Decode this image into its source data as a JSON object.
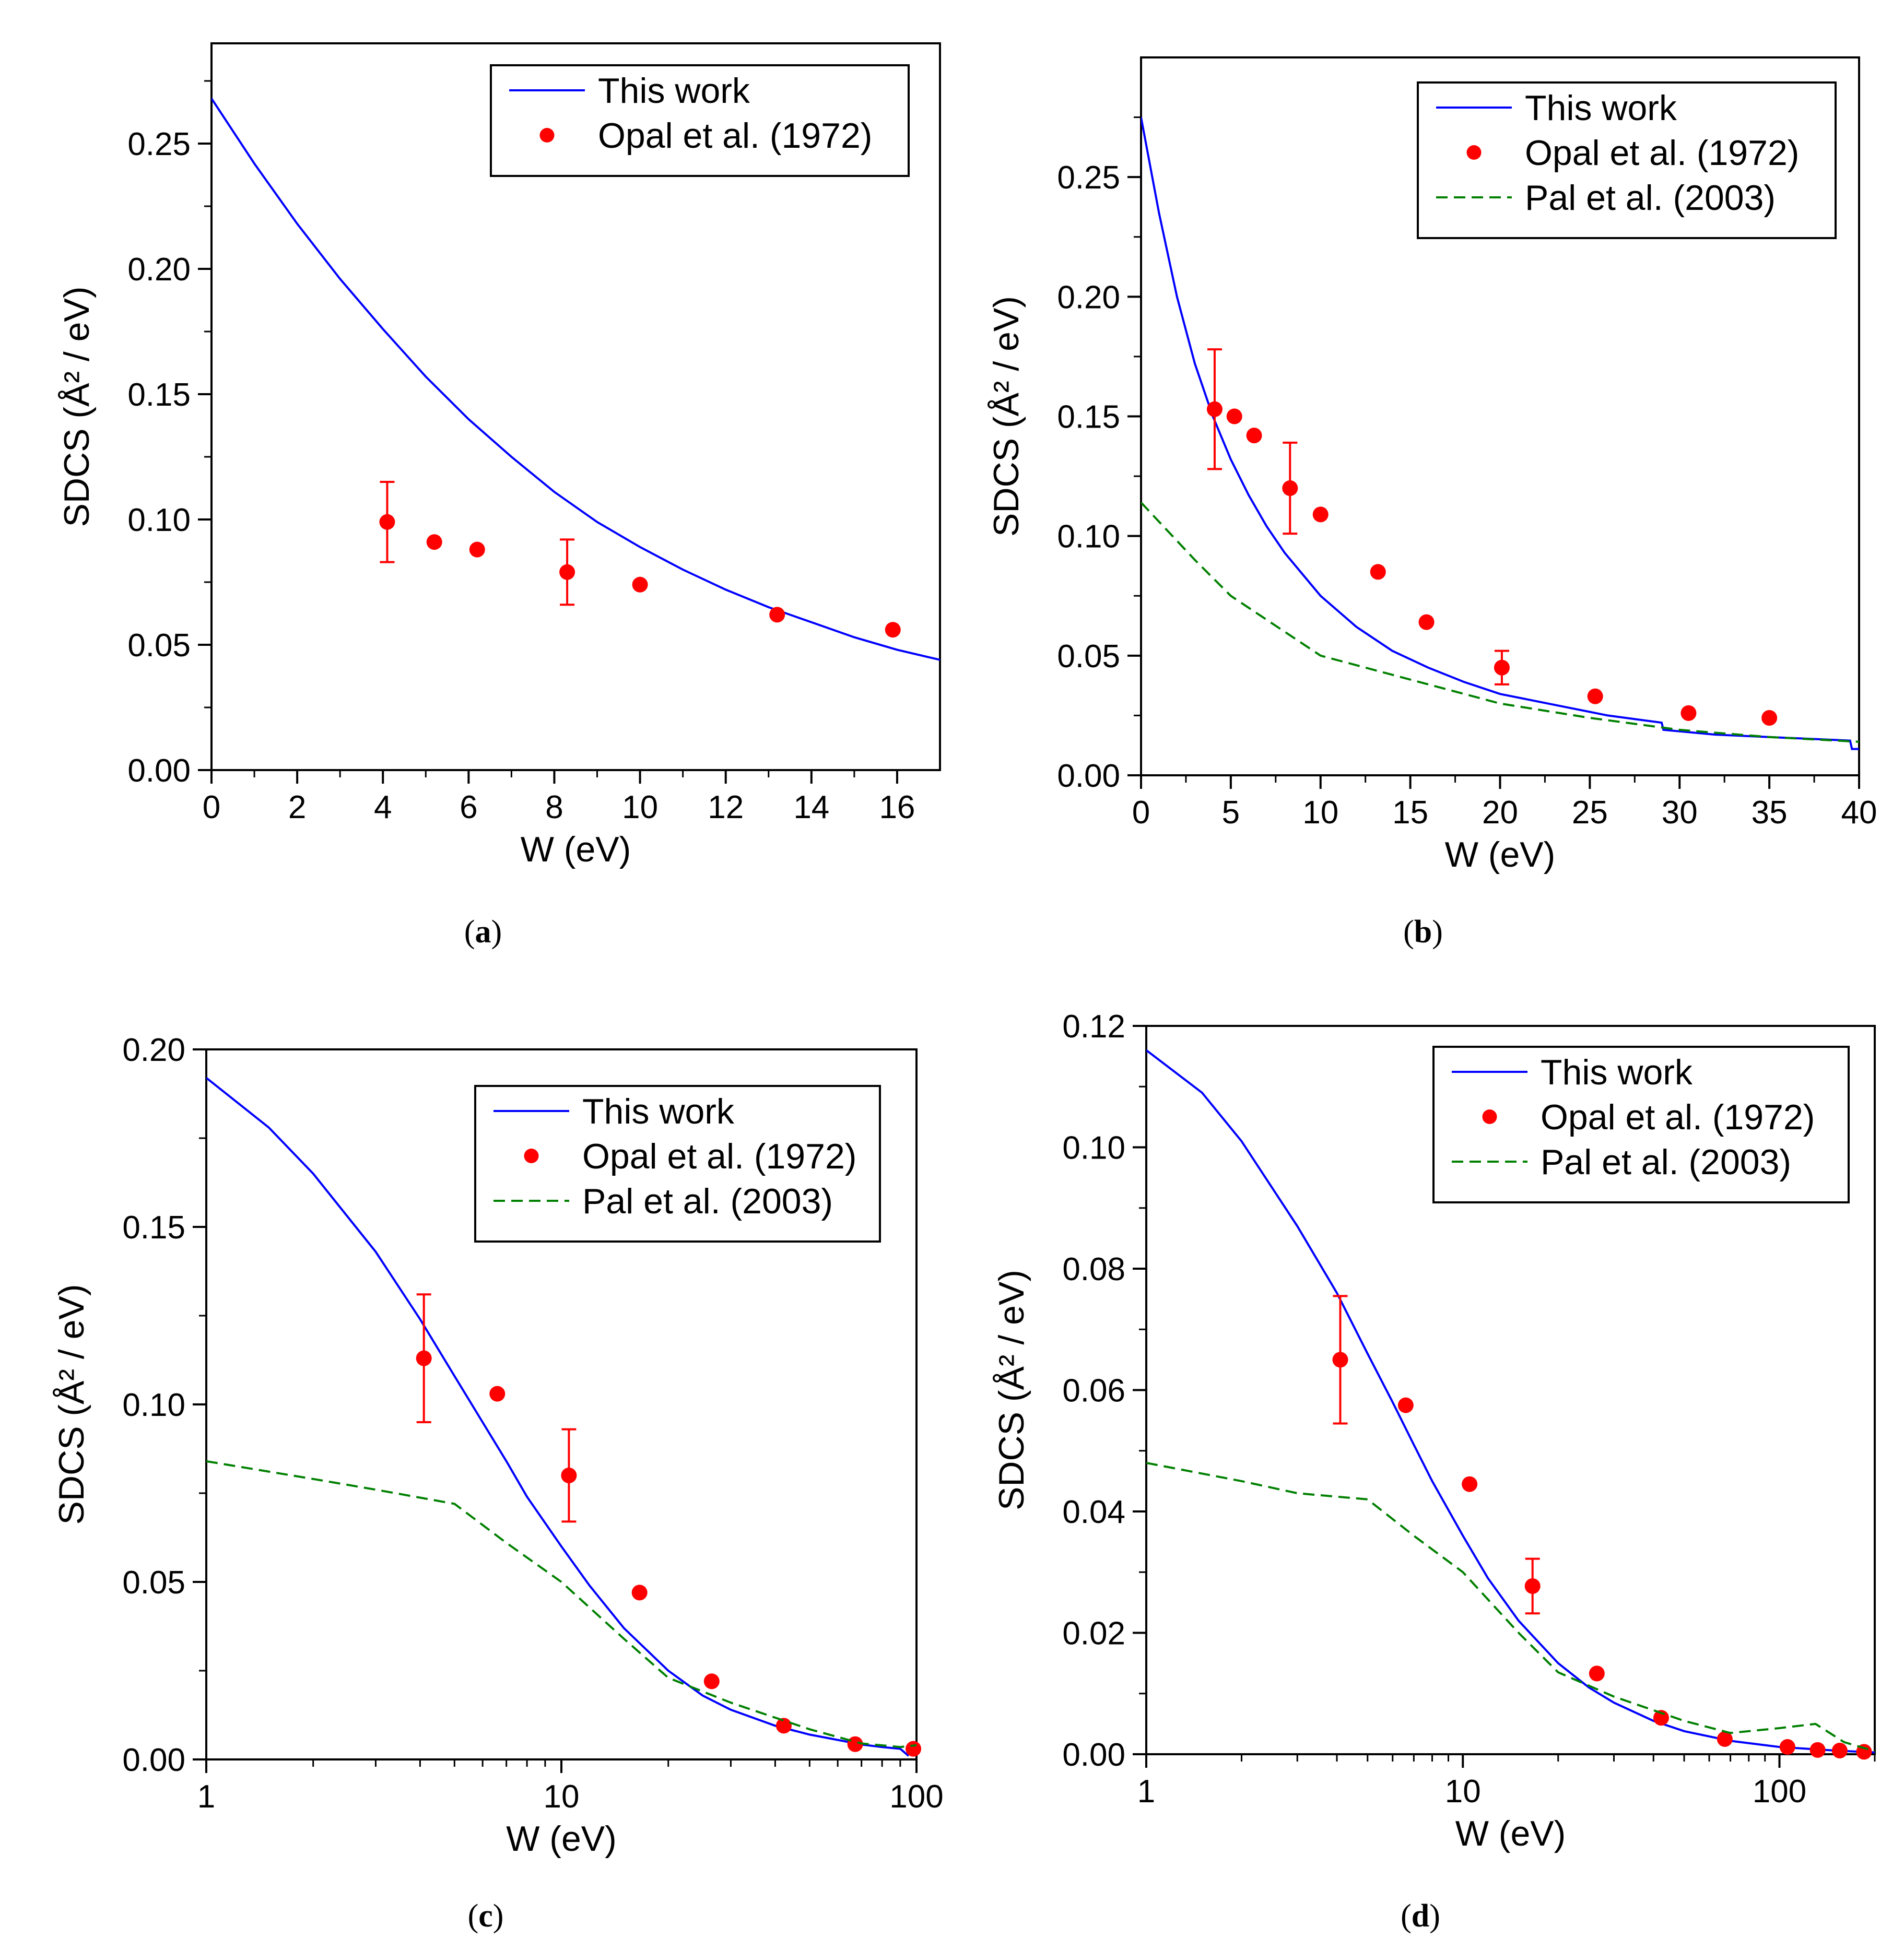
{
  "chart_data": [
    {
      "type": "line",
      "panel": "a",
      "xscale": "linear",
      "xlim": [
        0,
        17
      ],
      "ylim": [
        0,
        0.29
      ],
      "xticks": [
        0,
        2,
        4,
        6,
        8,
        10,
        12,
        14,
        16
      ],
      "xtick_labels": [
        "0",
        "2",
        "4",
        "6",
        "8",
        "10",
        "12",
        "14",
        "16"
      ],
      "yticks": [
        0,
        0.05,
        0.1,
        0.15,
        0.2,
        0.25
      ],
      "ytick_labels": [
        "0.00",
        "0.05",
        "0.10",
        "0.15",
        "0.20",
        "0.25"
      ],
      "xlabel": "W (eV)",
      "ylabel": "SDCS (Å² / eV)",
      "legend_position": "top-right",
      "series": [
        {
          "name": "This work",
          "style": "solid",
          "color": "#0000ff",
          "x": [
            0,
            1,
            2,
            3,
            4,
            5,
            6,
            7,
            8,
            9,
            10,
            11,
            12,
            13,
            14,
            15,
            16,
            17
          ],
          "y": [
            0.268,
            0.242,
            0.218,
            0.196,
            0.176,
            0.157,
            0.14,
            0.125,
            0.111,
            0.099,
            0.089,
            0.08,
            0.072,
            0.065,
            0.059,
            0.053,
            0.048,
            0.044
          ]
        },
        {
          "name": "Opal et al. (1972)",
          "style": "points",
          "color": "#ff0000",
          "x": [
            4.1,
            5.2,
            6.2,
            8.3,
            10.0,
            13.2,
            15.9
          ],
          "y": [
            0.099,
            0.091,
            0.088,
            0.079,
            0.074,
            0.062,
            0.056
          ],
          "err": [
            0.016,
            0,
            0,
            0.013,
            0,
            0,
            0
          ]
        }
      ]
    },
    {
      "type": "line",
      "panel": "b",
      "xscale": "linear",
      "xlim": [
        0,
        40
      ],
      "ylim": [
        0,
        0.3
      ],
      "xticks": [
        0,
        5,
        10,
        15,
        20,
        25,
        30,
        35,
        40
      ],
      "xtick_labels": [
        "0",
        "5",
        "10",
        "15",
        "20",
        "25",
        "30",
        "35",
        "40"
      ],
      "yticks": [
        0,
        0.05,
        0.1,
        0.15,
        0.2,
        0.25
      ],
      "ytick_labels": [
        "0.00",
        "0.05",
        "0.10",
        "0.15",
        "0.20",
        "0.25"
      ],
      "xlabel": "W (eV)",
      "ylabel": "SDCS (Å² / eV)",
      "legend_position": "top-right",
      "series": [
        {
          "name": "This work",
          "style": "solid",
          "color": "#0000ff",
          "x": [
            0,
            1,
            2,
            3,
            4,
            5,
            6,
            7,
            8,
            10,
            12,
            14,
            16,
            18,
            20,
            22,
            24,
            26,
            28,
            29,
            29.1,
            32,
            35,
            38,
            39.5,
            39.6,
            40
          ],
          "y": [
            0.275,
            0.235,
            0.2,
            0.172,
            0.15,
            0.132,
            0.117,
            0.104,
            0.093,
            0.075,
            0.062,
            0.052,
            0.045,
            0.039,
            0.034,
            0.031,
            0.028,
            0.025,
            0.023,
            0.022,
            0.019,
            0.017,
            0.016,
            0.015,
            0.0145,
            0.011,
            0.011
          ]
        },
        {
          "name": "Opal et al. (1972)",
          "style": "points",
          "color": "#ff0000",
          "x": [
            4.1,
            5.2,
            6.3,
            8.3,
            10.0,
            13.2,
            15.9,
            20.1,
            25.3,
            30.5,
            35.0
          ],
          "y": [
            0.153,
            0.15,
            0.142,
            0.12,
            0.109,
            0.085,
            0.064,
            0.045,
            0.033,
            0.026,
            0.024
          ],
          "err": [
            0.025,
            0,
            0,
            0.019,
            0,
            0,
            0,
            0.007,
            0,
            0,
            0
          ]
        },
        {
          "name": "Pal et al. (2003)",
          "style": "dashed",
          "color": "#008000",
          "x": [
            0,
            3,
            5,
            8,
            10,
            15,
            20,
            25,
            30,
            35,
            40
          ],
          "y": [
            0.114,
            0.09,
            0.075,
            0.06,
            0.05,
            0.04,
            0.03,
            0.024,
            0.019,
            0.016,
            0.014
          ]
        }
      ]
    },
    {
      "type": "line",
      "panel": "c",
      "xscale": "log",
      "xlim": [
        1,
        100
      ],
      "ylim": [
        0,
        0.2
      ],
      "xticks": [
        1,
        10,
        100
      ],
      "xtick_labels": [
        "1",
        "10",
        "100"
      ],
      "yticks": [
        0,
        0.05,
        0.1,
        0.15,
        0.2
      ],
      "ytick_labels": [
        "0.00",
        "0.05",
        "0.10",
        "0.15",
        "0.20"
      ],
      "xlabel": "W (eV)",
      "ylabel": "SDCS (Å² / eV)",
      "legend_position": "top-right",
      "series": [
        {
          "name": "This work",
          "style": "solid",
          "color": "#0000ff",
          "x": [
            1,
            1.5,
            2,
            3,
            4,
            5,
            6,
            7,
            8,
            10,
            12,
            15,
            20,
            25,
            30,
            40,
            50,
            60,
            70,
            80,
            90,
            95
          ],
          "y": [
            0.192,
            0.178,
            0.165,
            0.143,
            0.124,
            0.108,
            0.095,
            0.084,
            0.074,
            0.06,
            0.049,
            0.037,
            0.025,
            0.018,
            0.014,
            0.0095,
            0.007,
            0.0055,
            0.0042,
            0.0035,
            0.003,
            0.001
          ]
        },
        {
          "name": "Opal et al. (1972)",
          "style": "points",
          "color": "#ff0000",
          "x": [
            4.1,
            6.6,
            10.5,
            16.6,
            26.5,
            42.3,
            67.2,
            98.0
          ],
          "y": [
            0.113,
            0.103,
            0.08,
            0.047,
            0.022,
            0.0095,
            0.0043,
            0.003
          ],
          "err": [
            0.018,
            0,
            0.013,
            0,
            0,
            0,
            0,
            0
          ]
        },
        {
          "name": "Pal et al. (2003)",
          "style": "dashed",
          "color": "#008000",
          "x": [
            1,
            2,
            3,
            5,
            7,
            10,
            15,
            20,
            30,
            50,
            70,
            90,
            100
          ],
          "y": [
            0.084,
            0.079,
            0.076,
            0.072,
            0.061,
            0.05,
            0.034,
            0.023,
            0.016,
            0.0085,
            0.0045,
            0.0035,
            0.004
          ]
        }
      ]
    },
    {
      "type": "line",
      "panel": "d",
      "xscale": "log",
      "xlim": [
        1,
        200
      ],
      "ylim": [
        0,
        0.12
      ],
      "xticks": [
        1,
        10,
        100
      ],
      "xtick_labels": [
        "1",
        "10",
        "100"
      ],
      "yticks": [
        0,
        0.02,
        0.04,
        0.06,
        0.08,
        0.1,
        0.12
      ],
      "ytick_labels": [
        "0.00",
        "0.02",
        "0.04",
        "0.06",
        "0.08",
        "0.10",
        "0.12"
      ],
      "xlabel": "W (eV)",
      "ylabel": "SDCS (Å² / eV)",
      "legend_position": "top-right",
      "series": [
        {
          "name": "This work",
          "style": "solid",
          "color": "#0000ff",
          "x": [
            1,
            1.5,
            2,
            3,
            4,
            5,
            6,
            7,
            8,
            10,
            12,
            15,
            20,
            25,
            30,
            40,
            50,
            70,
            100,
            150,
            200
          ],
          "y": [
            0.116,
            0.109,
            0.101,
            0.087,
            0.076,
            0.066,
            0.058,
            0.051,
            0.045,
            0.036,
            0.029,
            0.022,
            0.015,
            0.011,
            0.0085,
            0.0055,
            0.0038,
            0.0022,
            0.0012,
            0.0006,
            0.0003
          ]
        },
        {
          "name": "Opal et al. (1972)",
          "style": "points",
          "color": "#ff0000",
          "x": [
            4.1,
            6.6,
            10.5,
            16.6,
            26.5,
            42.3,
            67.2,
            106.0,
            132.0,
            155.0,
            185.0
          ],
          "y": [
            0.065,
            0.0575,
            0.0445,
            0.0277,
            0.0133,
            0.006,
            0.0025,
            0.0012,
            0.0007,
            0.0006,
            0.0004
          ],
          "err": [
            0.0105,
            0,
            0,
            0.0045,
            0,
            0,
            0,
            0,
            0,
            0,
            0
          ]
        },
        {
          "name": "Pal et al. (2003)",
          "style": "dashed",
          "color": "#008000",
          "x": [
            1,
            2,
            3,
            5,
            7,
            10,
            15,
            20,
            30,
            50,
            70,
            100,
            130,
            160,
            200
          ],
          "y": [
            0.048,
            0.045,
            0.043,
            0.042,
            0.036,
            0.03,
            0.02,
            0.0135,
            0.0095,
            0.0055,
            0.0035,
            0.0043,
            0.005,
            0.002,
            0.0005
          ]
        }
      ]
    }
  ],
  "panel_labels": [
    "(a)",
    "(b)",
    "(c)",
    "(d)"
  ],
  "panel_letters": [
    "a",
    "b",
    "c",
    "d"
  ]
}
